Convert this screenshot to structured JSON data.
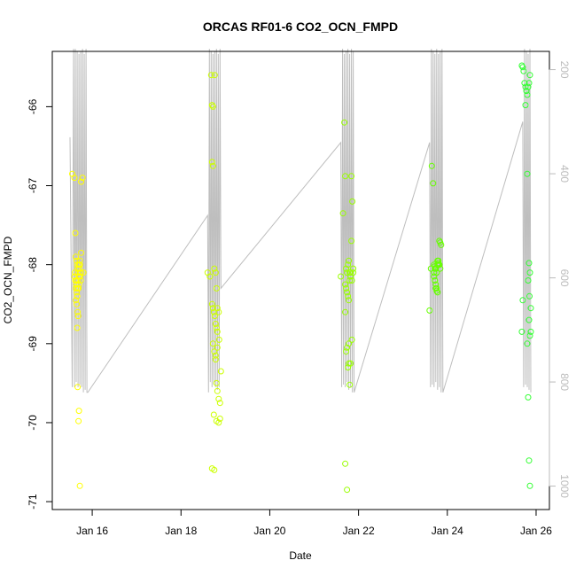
{
  "chart_data": {
    "type": "scatter",
    "title": "ORCAS RF01-6 CO2_OCN_FMPD",
    "xlabel": "Date",
    "ylabel": "CO2_OCN_FMPD",
    "x_ticks": [
      {
        "value": 16,
        "label": "Jan 16"
      },
      {
        "value": 18,
        "label": "Jan 18"
      },
      {
        "value": 20,
        "label": "Jan 20"
      },
      {
        "value": 22,
        "label": "Jan 22"
      },
      {
        "value": 24,
        "label": "Jan 24"
      },
      {
        "value": 26,
        "label": "Jan 26"
      }
    ],
    "y_ticks": [
      -71,
      -70,
      -69,
      -68,
      -67,
      -66
    ],
    "y2_ticks": [
      200,
      400,
      600,
      800,
      1000
    ],
    "xlim": [
      15.1,
      26.3
    ],
    "ylim": [
      -71.1,
      -65.3
    ],
    "y2lim": [
      1045,
      165
    ],
    "grid": false,
    "colors": {
      "RF01": "#ffff00",
      "RF02": "#ccff00",
      "RF03": "#99ff00",
      "RF04": "#66ff00",
      "RF05": "#33ff33",
      "line": "#bebebe",
      "secondary_axis": "#bbbbbb"
    },
    "series": [
      {
        "key": "RF01",
        "x": [
          15.55,
          15.6,
          15.62,
          15.63,
          15.65,
          15.66,
          15.67,
          15.68,
          15.7,
          15.72,
          15.6,
          15.61,
          15.62,
          15.63,
          15.64,
          15.65,
          15.66,
          15.67,
          15.68,
          15.7,
          15.71,
          15.72,
          15.73,
          15.74,
          15.75,
          15.63,
          15.65,
          15.66,
          15.67,
          15.68,
          15.69,
          15.7,
          15.72,
          15.74,
          15.66,
          15.67,
          15.7,
          15.75,
          15.78,
          15.8,
          15.72,
          15.64,
          15.72,
          15.69
        ],
        "y": [
          -66.85,
          -66.9,
          -67.6,
          -67.9,
          -67.95,
          -68.0,
          -68.05,
          -68.1,
          -68.0,
          -67.95,
          -68.15,
          -68.1,
          -68.2,
          -68.3,
          -68.25,
          -68.35,
          -68.4,
          -68.3,
          -68.2,
          -68.15,
          -68.05,
          -68.0,
          -68.1,
          -68.2,
          -67.85,
          -68.45,
          -68.5,
          -68.4,
          -68.6,
          -68.65,
          -68.3,
          -68.25,
          -68.15,
          -68.1,
          -68.8,
          -69.55,
          -69.85,
          -66.95,
          -66.9,
          -68.1,
          -68.0,
          -68.2,
          -70.8,
          -69.98
        ]
      },
      {
        "key": "RF02",
        "x": [
          18.6,
          18.65,
          18.68,
          18.7,
          18.72,
          18.75,
          18.78,
          18.8,
          18.82,
          18.85,
          18.7,
          18.72,
          18.74,
          18.76,
          18.78,
          18.8,
          18.82,
          18.72,
          18.75,
          18.78,
          18.8,
          18.82,
          18.85,
          18.88,
          18.9,
          18.7,
          18.75,
          18.8,
          18.85,
          18.88,
          18.74,
          18.78,
          18.82,
          18.86,
          18.7,
          18.72,
          18.76
        ],
        "y": [
          -68.1,
          -68.15,
          -65.6,
          -65.98,
          -66.75,
          -68.05,
          -68.1,
          -68.3,
          -68.55,
          -68.6,
          -68.5,
          -68.55,
          -68.6,
          -68.65,
          -68.75,
          -68.8,
          -68.85,
          -69.0,
          -69.1,
          -69.15,
          -69.5,
          -69.6,
          -69.7,
          -69.75,
          -69.35,
          -70.58,
          -70.6,
          -69.98,
          -70.0,
          -69.95,
          -69.9,
          -69.2,
          -69.05,
          -68.95,
          -66.7,
          -66.0,
          -65.6
        ]
      },
      {
        "key": "RF03",
        "x": [
          21.6,
          21.65,
          21.68,
          21.7,
          21.72,
          21.74,
          21.76,
          21.78,
          21.8,
          21.82,
          21.85,
          21.88,
          21.7,
          21.72,
          21.74,
          21.76,
          21.78,
          21.8,
          21.82,
          21.84,
          21.86,
          21.7,
          21.74,
          21.78,
          21.82,
          21.85,
          21.72,
          21.76,
          21.8,
          21.84,
          21.88,
          21.7,
          21.74,
          21.78
        ],
        "y": [
          -68.15,
          -67.35,
          -66.2,
          -66.88,
          -68.05,
          -68.1,
          -68.0,
          -67.95,
          -68.1,
          -68.15,
          -68.2,
          -68.05,
          -68.25,
          -68.3,
          -68.35,
          -68.4,
          -68.45,
          -68.2,
          -68.1,
          -67.7,
          -67.2,
          -68.6,
          -69.05,
          -69.0,
          -69.25,
          -68.95,
          -69.1,
          -69.3,
          -69.52,
          -66.88,
          -68.1,
          -70.52,
          -70.85,
          -69.25
        ]
      },
      {
        "key": "RF04",
        "x": [
          23.6,
          23.63,
          23.65,
          23.68,
          23.7,
          23.72,
          23.74,
          23.76,
          23.78,
          23.8,
          23.82,
          23.84,
          23.7,
          23.72,
          23.74,
          23.76,
          23.78,
          23.8,
          23.82,
          23.84,
          23.86,
          23.7,
          23.72,
          23.74,
          23.76,
          23.78,
          23.8,
          23.82,
          23.72,
          23.76
        ],
        "y": [
          -68.58,
          -68.05,
          -66.75,
          -66.97,
          -68.0,
          -68.02,
          -68.05,
          -68.1,
          -67.95,
          -67.98,
          -68.0,
          -68.05,
          -68.1,
          -68.2,
          -68.25,
          -68.3,
          -68.35,
          -68.0,
          -67.7,
          -67.72,
          -67.75,
          -68.15,
          -68.2,
          -68.3,
          -68.33,
          -68.0,
          -67.95,
          -68.0,
          -68.05,
          -68.1
        ]
      },
      {
        "key": "RF05",
        "x": [
          25.68,
          25.7,
          25.72,
          25.74,
          25.76,
          25.78,
          25.8,
          25.82,
          25.84,
          25.86,
          25.76,
          25.8,
          25.84,
          25.86,
          25.82,
          25.85,
          25.88,
          25.84,
          25.86,
          25.8,
          25.82,
          25.84,
          25.86,
          25.88,
          25.7,
          25.68
        ],
        "y": [
          -65.48,
          -65.5,
          -65.55,
          -65.7,
          -65.75,
          -65.8,
          -65.85,
          -65.75,
          -65.7,
          -65.6,
          -65.98,
          -66.85,
          -67.98,
          -68.1,
          -68.2,
          -68.4,
          -68.55,
          -68.7,
          -68.9,
          -69.0,
          -69.68,
          -70.48,
          -70.8,
          -68.85,
          -68.45,
          -68.85
        ]
      }
    ],
    "altitude_track": {
      "x": [
        15.5,
        15.55,
        15.58,
        15.6,
        15.62,
        15.64,
        15.66,
        15.68,
        15.7,
        15.72,
        15.74,
        15.76,
        15.78,
        15.8,
        15.82,
        15.84,
        15.86,
        15.88,
        15.9,
        18.6,
        18.62,
        18.64,
        18.66,
        18.68,
        18.7,
        18.72,
        18.74,
        18.76,
        18.78,
        18.8,
        18.82,
        18.84,
        18.86,
        18.88,
        18.9,
        21.6,
        21.62,
        21.64,
        21.66,
        21.68,
        21.7,
        21.72,
        21.74,
        21.76,
        21.78,
        21.8,
        21.82,
        21.84,
        21.86,
        21.88,
        21.9,
        23.6,
        23.62,
        23.64,
        23.66,
        23.68,
        23.7,
        23.72,
        23.74,
        23.76,
        23.78,
        23.8,
        23.82,
        23.84,
        23.86,
        23.88,
        23.9,
        25.7,
        25.72,
        25.74,
        25.76,
        25.78,
        25.8,
        25.82,
        25.84,
        25.86,
        25.88
      ],
      "y": [
        330,
        810,
        160,
        810,
        160,
        800,
        165,
        810,
        170,
        805,
        165,
        810,
        160,
        820,
        170,
        815,
        160,
        820,
        820,
        480,
        820,
        160,
        800,
        165,
        810,
        170,
        805,
        165,
        810,
        160,
        815,
        170,
        810,
        160,
        620,
        340,
        810,
        160,
        805,
        170,
        810,
        165,
        800,
        160,
        815,
        170,
        810,
        160,
        820,
        165,
        820,
        340,
        810,
        160,
        805,
        165,
        810,
        170,
        800,
        160,
        815,
        170,
        810,
        165,
        820,
        160,
        820,
        300,
        810,
        160,
        805,
        165,
        810,
        170,
        815,
        160,
        820
      ]
    }
  }
}
